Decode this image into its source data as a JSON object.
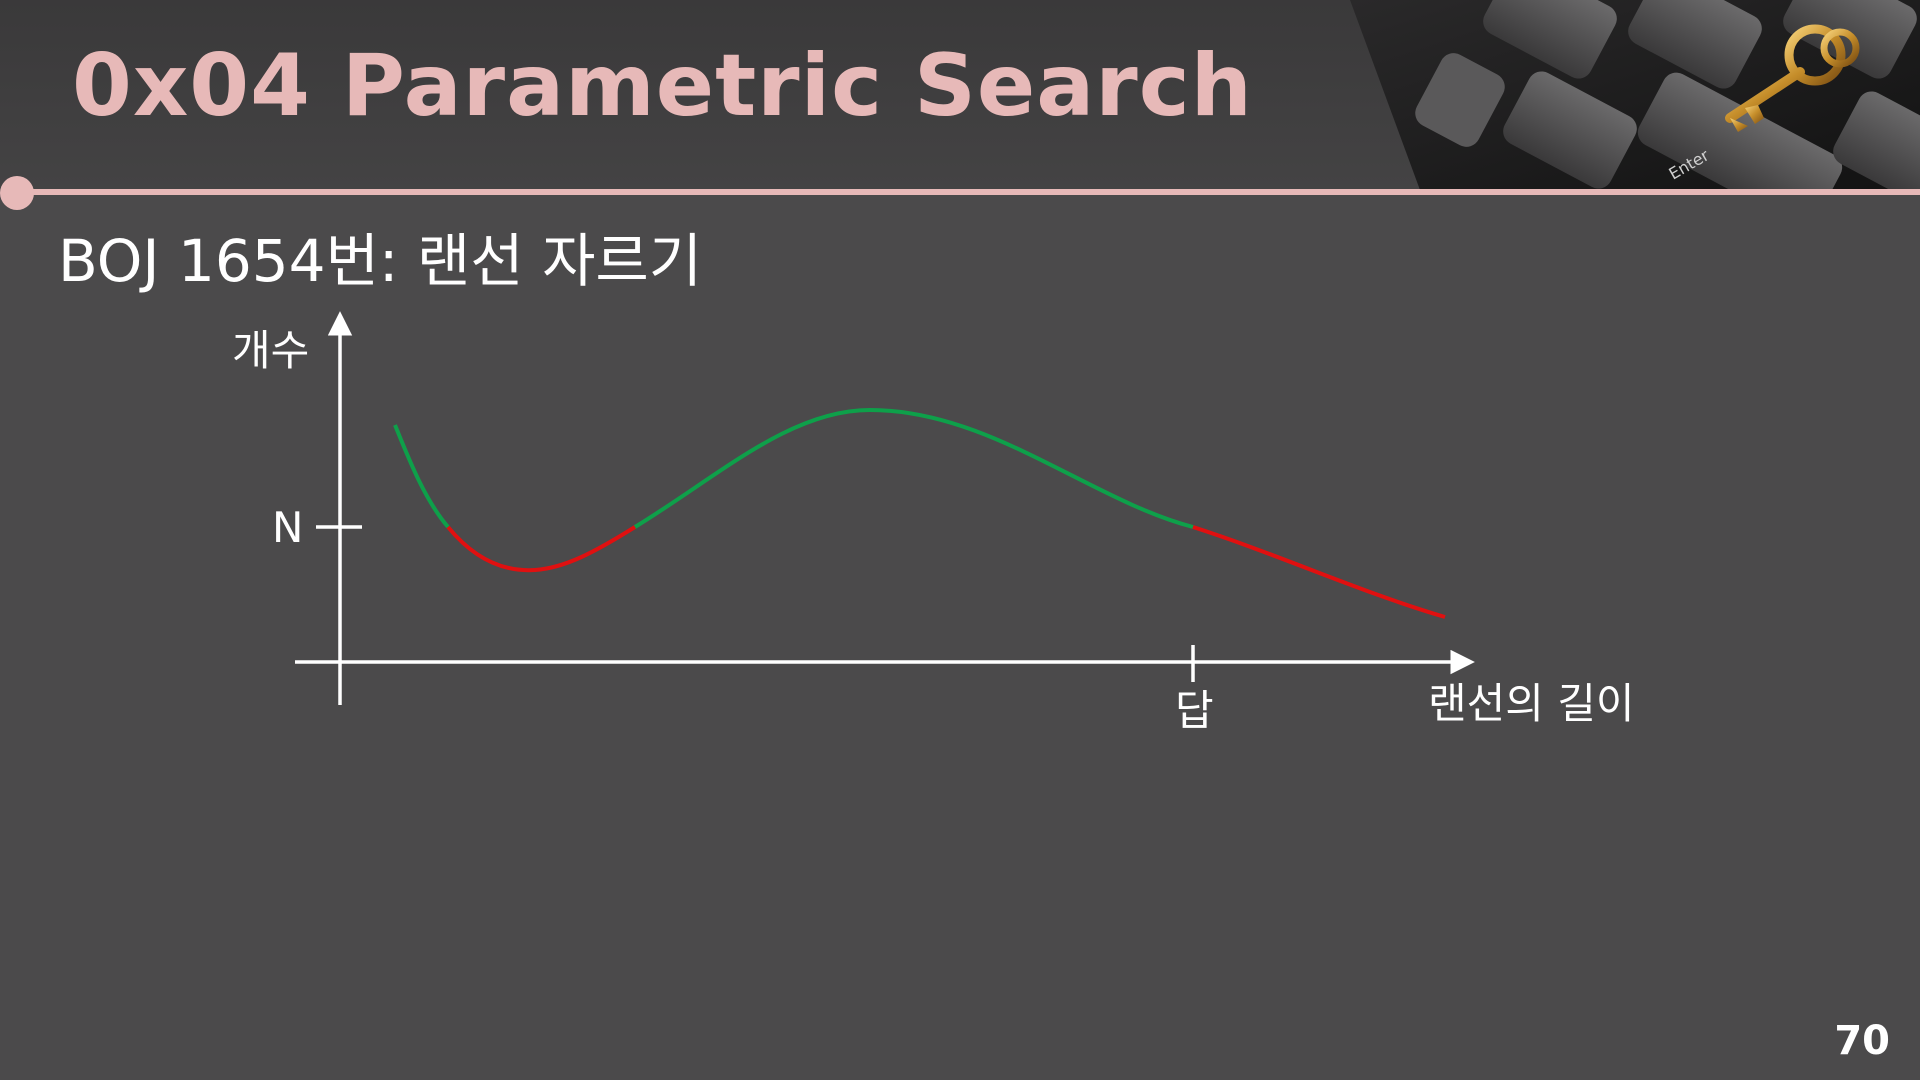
{
  "slide": {
    "title": "0x04  Parametric Search",
    "subtitle": "BOJ 1654번: 랜선 자르기",
    "page_number": "70"
  },
  "diagram": {
    "y_axis_label": "개수",
    "x_axis_label": "랜선의 길이",
    "y_tick_label": "N",
    "x_tick_label": "답",
    "colors": {
      "axis": "#ffffff",
      "satisfies": "#0ea04a",
      "fails": "#e01010",
      "accent": "#e7b9b8",
      "background": "#4b4a4b"
    },
    "legend_meaning": {
      "green": "count >= N",
      "red": "count < N"
    }
  },
  "decor": {
    "image": "keyboard-with-golden-key",
    "key_label": "Enter"
  }
}
